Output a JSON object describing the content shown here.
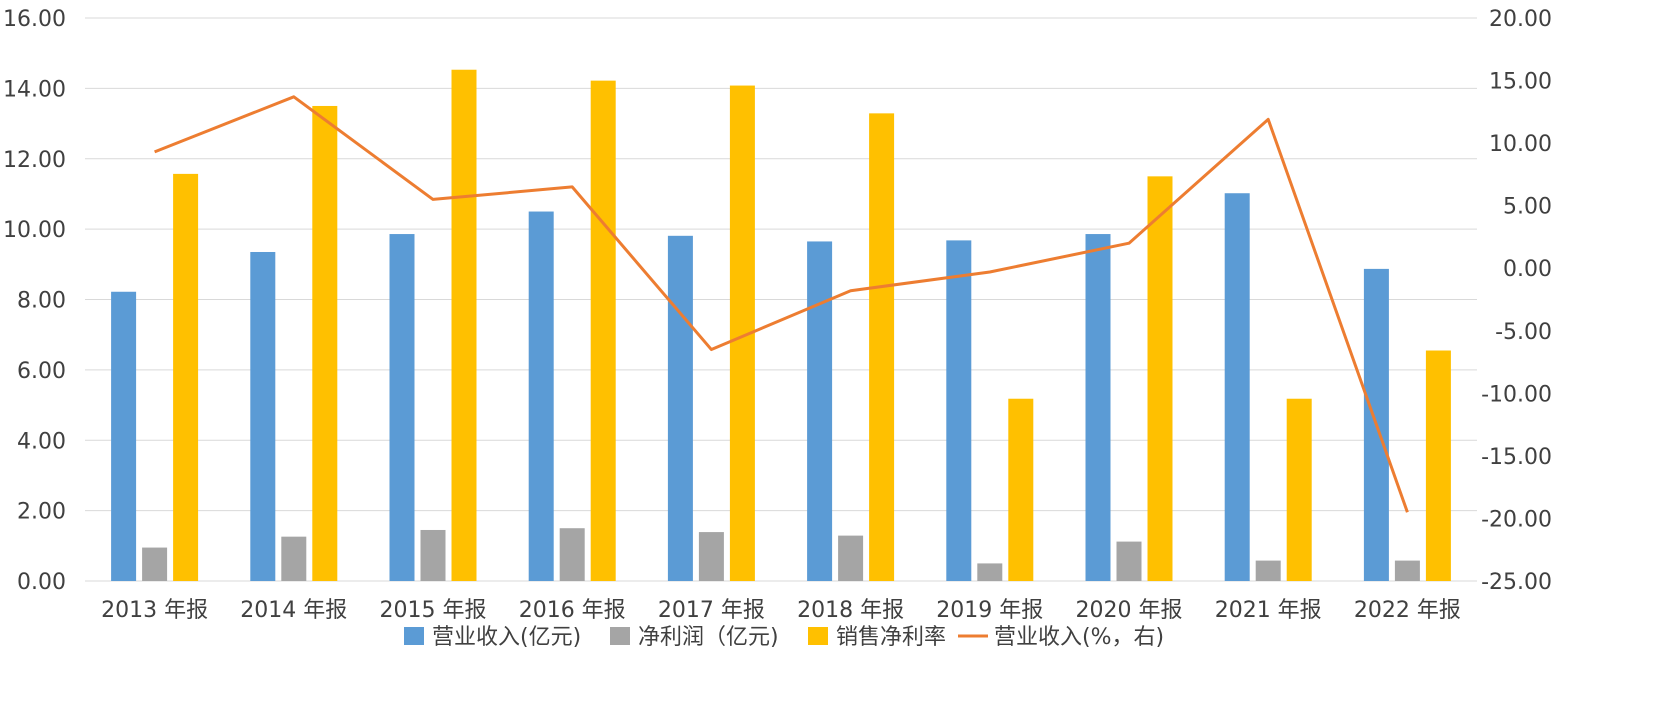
{
  "chart_data": {
    "type": "bar",
    "categories": [
      "2013 年报",
      "2014 年报",
      "2015 年报",
      "2016 年报",
      "2017 年报",
      "2018 年报",
      "2019 年报",
      "2020 年报",
      "2021 年报",
      "2022 年报"
    ],
    "series": [
      {
        "name": "营业收入(亿元)",
        "type": "bar",
        "axis": "left",
        "color": "#5b9bd5",
        "values": [
          8.22,
          9.35,
          9.86,
          10.5,
          9.81,
          9.65,
          9.68,
          9.86,
          11.02,
          8.87
        ]
      },
      {
        "name": "净利润（亿元)",
        "type": "bar",
        "axis": "left",
        "color": "#a5a5a5",
        "values": [
          0.95,
          1.26,
          1.45,
          1.5,
          1.39,
          1.29,
          0.5,
          1.12,
          0.58,
          0.58
        ]
      },
      {
        "name": "销售净利率",
        "type": "bar",
        "axis": "left",
        "color": "#ffc000",
        "values": [
          11.57,
          13.5,
          14.53,
          14.22,
          14.08,
          13.29,
          5.18,
          11.5,
          5.18,
          6.55
        ]
      },
      {
        "name": "营业收入(%，右)",
        "type": "line",
        "axis": "right",
        "color": "#ed7d31",
        "values": [
          9.3,
          13.7,
          5.5,
          6.5,
          -6.5,
          -1.8,
          -0.3,
          2.0,
          11.9,
          -19.5
        ]
      }
    ],
    "y_left": {
      "min": 0,
      "max": 16,
      "step": 2,
      "ticks": [
        "0.00",
        "2.00",
        "4.00",
        "6.00",
        "8.00",
        "10.00",
        "12.00",
        "14.00",
        "16.00"
      ]
    },
    "y_right": {
      "min": -25,
      "max": 20,
      "step": 5,
      "ticks": [
        "-25.00",
        "-20.00",
        "-15.00",
        "-10.00",
        "-5.00",
        "0.00",
        "5.00",
        "10.00",
        "15.00",
        "20.00"
      ]
    },
    "grid": true,
    "legend_position": "bottom"
  }
}
